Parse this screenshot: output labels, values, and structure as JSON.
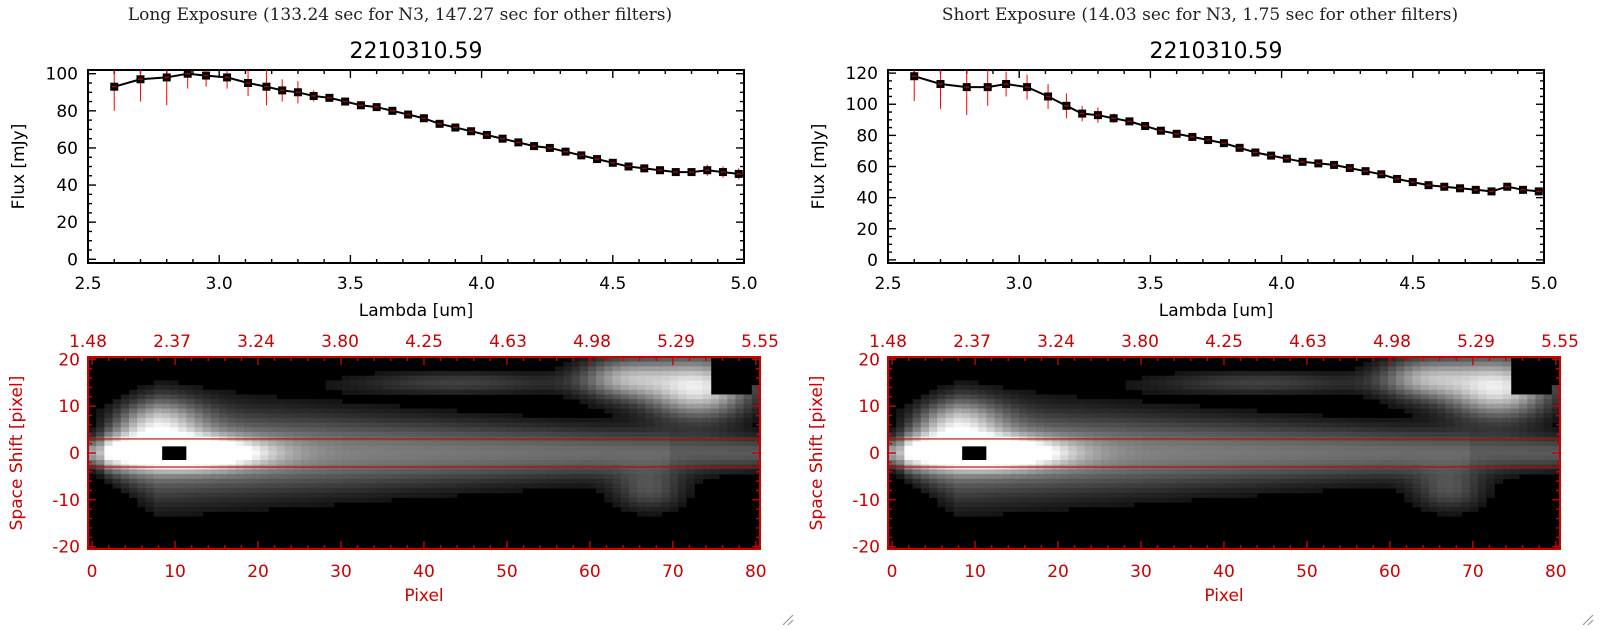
{
  "panels": [
    {
      "title": "Long Exposure (133.24 sec for N3, 147.27 sec for other filters)",
      "chart_data": {
        "type": "line",
        "title": "2210310.59",
        "xlabel": "Lambda [um]",
        "ylabel": "Flux [mJy]",
        "xlim": [
          2.5,
          5.0
        ],
        "ylim": [
          -2,
          102
        ],
        "xticks": [
          "2.5",
          "3.0",
          "3.5",
          "4.0",
          "4.5",
          "5.0"
        ],
        "yticks": [
          "0",
          "20",
          "40",
          "60",
          "80",
          "100"
        ],
        "series": [
          {
            "x": [
              2.6,
              2.7,
              2.8,
              2.88,
              2.95,
              3.03,
              3.11,
              3.18,
              3.24,
              3.3,
              3.36,
              3.42,
              3.48,
              3.54,
              3.6,
              3.66,
              3.72,
              3.78,
              3.84,
              3.9,
              3.96,
              4.02,
              4.08,
              4.14,
              4.2,
              4.26,
              4.32,
              4.38,
              4.44,
              4.5,
              4.56,
              4.62,
              4.68,
              4.74,
              4.8,
              4.86,
              4.92,
              4.98
            ],
            "y": [
              93,
              97,
              98,
              100,
              99,
              98,
              95,
              93,
              91,
              90,
              88,
              87,
              85,
              83,
              82,
              80,
              78,
              76,
              73,
              71,
              69,
              67,
              65,
              63,
              61,
              60,
              58,
              56,
              54,
              52,
              50,
              49,
              48,
              47,
              47,
              48,
              47,
              46
            ],
            "err": [
              13,
              12,
              15,
              8,
              6,
              6,
              7,
              10,
              6,
              6,
              3,
              2,
              2,
              2,
              2,
              2,
              2,
              2,
              2,
              2,
              2,
              2,
              2,
              2,
              2,
              2,
              2,
              2,
              2,
              2,
              2,
              2,
              2,
              2,
              2,
              3,
              3,
              3
            ],
            "color": "#000000",
            "errcolor": "#ff0000"
          }
        ]
      },
      "image": {
        "top_ticks": [
          "1.48",
          "2.37",
          "3.24",
          "3.80",
          "4.25",
          "4.63",
          "4.98",
          "5.29",
          "5.55"
        ],
        "x_ticks": [
          "0",
          "10",
          "20",
          "30",
          "40",
          "50",
          "60",
          "70",
          "80"
        ],
        "y_ticks": [
          "20",
          "10",
          "0",
          "-10",
          "-20"
        ],
        "xlabel": "Pixel",
        "ylabel": "Space Shift [pixel]",
        "axis_color": "#cc0000"
      }
    },
    {
      "title": "Short Exposure (14.03 sec for N3, 1.75 sec for other filters)",
      "chart_data": {
        "type": "line",
        "title": "2210310.59",
        "xlabel": "Lambda [um]",
        "ylabel": "Flux [mJy]",
        "xlim": [
          2.5,
          5.0
        ],
        "ylim": [
          -2,
          122
        ],
        "xticks": [
          "2.5",
          "3.0",
          "3.5",
          "4.0",
          "4.5",
          "5.0"
        ],
        "yticks": [
          "0",
          "20",
          "40",
          "60",
          "80",
          "100",
          "120"
        ],
        "series": [
          {
            "x": [
              2.6,
              2.7,
              2.8,
              2.88,
              2.95,
              3.03,
              3.11,
              3.18,
              3.24,
              3.3,
              3.36,
              3.42,
              3.48,
              3.54,
              3.6,
              3.66,
              3.72,
              3.78,
              3.84,
              3.9,
              3.96,
              4.02,
              4.08,
              4.14,
              4.2,
              4.26,
              4.32,
              4.38,
              4.44,
              4.5,
              4.56,
              4.62,
              4.68,
              4.74,
              4.8,
              4.86,
              4.92,
              4.98
            ],
            "y": [
              118,
              113,
              111,
              111,
              113,
              111,
              105,
              99,
              94,
              93,
              91,
              89,
              86,
              83,
              81,
              79,
              77,
              75,
              72,
              69,
              67,
              65,
              63,
              62,
              61,
              59,
              57,
              55,
              52,
              50,
              48,
              47,
              46,
              45,
              44,
              47,
              45,
              44
            ],
            "err": [
              16,
              16,
              18,
              12,
              8,
              8,
              8,
              8,
              5,
              5,
              3,
              2,
              2,
              2,
              2,
              2,
              2,
              2,
              2,
              2,
              2,
              2,
              2,
              2,
              2,
              2,
              2,
              2,
              2,
              2,
              2,
              2,
              2,
              2,
              2,
              2,
              2,
              2
            ],
            "color": "#000000",
            "errcolor": "#ff0000"
          }
        ]
      },
      "image": {
        "top_ticks": [
          "1.48",
          "2.37",
          "3.24",
          "3.80",
          "4.25",
          "4.63",
          "4.98",
          "5.29",
          "5.55"
        ],
        "x_ticks": [
          "0",
          "10",
          "20",
          "30",
          "40",
          "50",
          "60",
          "70",
          "80"
        ],
        "y_ticks": [
          "20",
          "10",
          "0",
          "-10",
          "-20"
        ],
        "xlabel": "Pixel",
        "ylabel": "Space Shift [pixel]",
        "axis_color": "#cc0000"
      }
    }
  ]
}
